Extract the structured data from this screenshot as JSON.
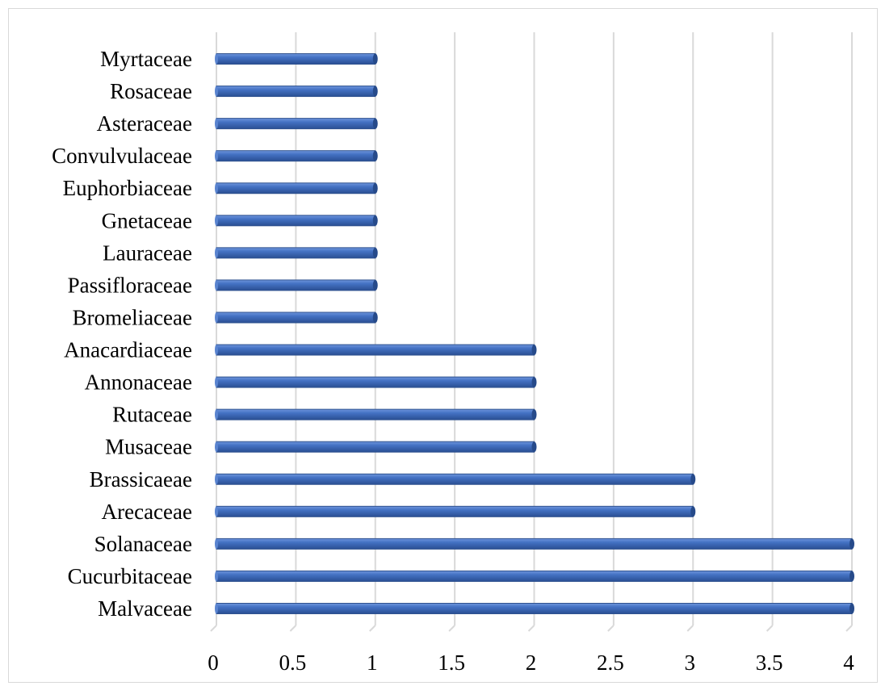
{
  "chart_data": {
    "type": "bar",
    "orientation": "horizontal",
    "title": "",
    "xlabel": "",
    "ylabel": "",
    "categories": [
      "Malvaceae",
      "Cucurbitaceae",
      "Solanaceae",
      "Arecaceae",
      "Brassicaeae",
      "Musaceae",
      "Rutaceae",
      "Annonaceae",
      "Anacardiaceae",
      "Bromeliaceae",
      "Passifloraceae",
      "Lauraceae",
      "Gnetaceae",
      "Euphorbiaceae",
      "Convulvulaceae",
      "Asteraceae",
      "Rosaceae",
      "Myrtaceae"
    ],
    "values": [
      4,
      4,
      4,
      3,
      3,
      2,
      2,
      2,
      2,
      1,
      1,
      1,
      1,
      1,
      1,
      1,
      1,
      1
    ],
    "xlim": [
      0,
      4
    ],
    "xticks": [
      "0",
      "0.5",
      "1",
      "1.5",
      "2",
      "2.5",
      "3",
      "3.5",
      "4"
    ],
    "grid": "vertical",
    "legend": "none",
    "bar_color": "#4472c4",
    "bar_color_dark": "#2f528f",
    "grid_color": "#d9d9d9"
  }
}
